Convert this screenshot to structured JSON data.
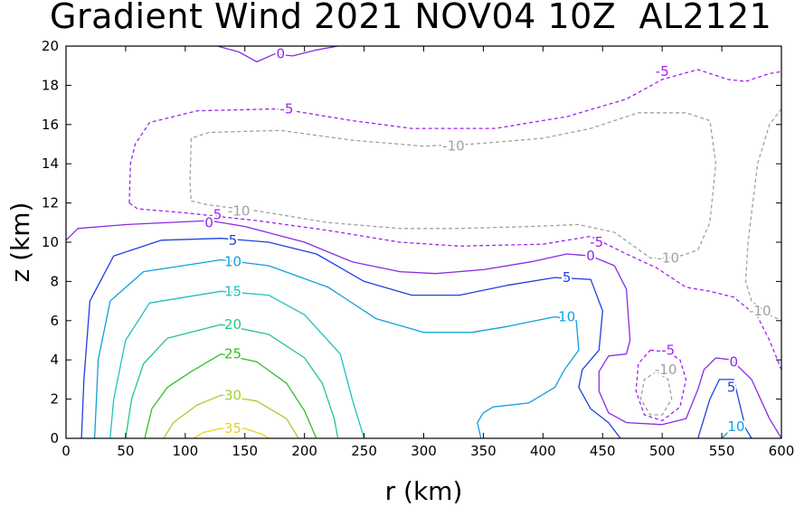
{
  "chart_data": {
    "type": "contour",
    "title": "Gradient Wind 2021 NOV04 10Z  AL2121",
    "xlabel": "r (km)",
    "ylabel": "z (km)",
    "xlim": [
      0,
      600
    ],
    "ylim": [
      0,
      20
    ],
    "xticks": [
      0,
      50,
      100,
      150,
      200,
      250,
      300,
      350,
      400,
      450,
      500,
      550,
      600
    ],
    "yticks": [
      0,
      2,
      4,
      6,
      8,
      10,
      12,
      14,
      16,
      18,
      20
    ],
    "colors": {
      "neg10": "#a0a0a0",
      "neg5": "#a020f0",
      "zero": "#8a2be2",
      "c5": "#2040e0",
      "c10": "#10a0e0",
      "c15": "#20c0c0",
      "c20": "#20c880",
      "c25": "#30c020",
      "c30": "#a0d030",
      "c35": "#e8d020"
    },
    "contours": [
      {
        "level": -10,
        "label": "-10",
        "color": "#a0a0a0",
        "dash": true,
        "points": [
          [
            105,
            12.1
          ],
          [
            120,
            11.9
          ],
          [
            160,
            11.6
          ],
          [
            220,
            11
          ],
          [
            280,
            10.7
          ],
          [
            330,
            10.7
          ],
          [
            390,
            10.8
          ],
          [
            430,
            10.9
          ],
          [
            460,
            10.5
          ],
          [
            490,
            9.2
          ],
          [
            510,
            9.2
          ],
          [
            530,
            9.6
          ],
          [
            540,
            11
          ],
          [
            545,
            14
          ],
          [
            540,
            16.2
          ],
          [
            520,
            16.6
          ],
          [
            480,
            16.6
          ],
          [
            440,
            15.8
          ],
          [
            400,
            15.3
          ],
          [
            340,
            15
          ],
          [
            300,
            14.9
          ],
          [
            240,
            15.2
          ],
          [
            180,
            15.7
          ],
          [
            120,
            15.6
          ],
          [
            105,
            15.3
          ],
          [
            104,
            13
          ],
          [
            105,
            12.1
          ]
        ]
      },
      {
        "level": -10,
        "label": "-10",
        "color": "#a0a0a0",
        "dash": true,
        "points": [
          [
            600,
            16.8
          ],
          [
            590,
            16
          ],
          [
            580,
            14
          ],
          [
            572,
            10
          ],
          [
            570,
            8
          ],
          [
            575,
            7
          ],
          [
            590,
            6.3
          ],
          [
            600,
            6
          ]
        ]
      },
      {
        "level": -10,
        "label": "-10",
        "color": "#a0a0a0",
        "dash": true,
        "points": [
          [
            495,
            3.4
          ],
          [
            485,
            3
          ],
          [
            482,
            2
          ],
          [
            490,
            1.2
          ],
          [
            500,
            1.2
          ],
          [
            508,
            2
          ],
          [
            505,
            3
          ],
          [
            495,
            3.4
          ]
        ]
      },
      {
        "level": -5,
        "label": "-5",
        "color": "#a020f0",
        "dash": true,
        "points": [
          [
            53,
            12
          ],
          [
            60,
            11.7
          ],
          [
            100,
            11.5
          ],
          [
            160,
            11.1
          ],
          [
            220,
            10.6
          ],
          [
            280,
            10
          ],
          [
            330,
            9.8
          ],
          [
            400,
            9.9
          ],
          [
            440,
            10.3
          ],
          [
            470,
            9.4
          ],
          [
            495,
            8.7
          ],
          [
            520,
            7.7
          ],
          [
            540,
            7.5
          ],
          [
            560,
            7.2
          ],
          [
            580,
            6.2
          ],
          [
            590,
            5
          ],
          [
            600,
            3.5
          ]
        ]
      },
      {
        "level": -5,
        "label": "-5",
        "color": "#a020f0",
        "dash": true,
        "points": [
          [
            53,
            12
          ],
          [
            54,
            14
          ],
          [
            58,
            15
          ],
          [
            70,
            16.1
          ],
          [
            110,
            16.7
          ],
          [
            180,
            16.8
          ],
          [
            240,
            16.2
          ],
          [
            290,
            15.8
          ],
          [
            360,
            15.8
          ],
          [
            420,
            16.4
          ],
          [
            470,
            17.3
          ],
          [
            500,
            18.3
          ],
          [
            530,
            18.8
          ],
          [
            555,
            18.3
          ],
          [
            570,
            18.2
          ],
          [
            590,
            18.6
          ],
          [
            600,
            18.7
          ]
        ]
      },
      {
        "level": -5,
        "label": "-5",
        "color": "#a020f0",
        "dash": true,
        "points": [
          [
            490,
            4.5
          ],
          [
            505,
            4.4
          ],
          [
            515,
            4
          ],
          [
            520,
            3
          ],
          [
            515,
            1.6
          ],
          [
            500,
            0.9
          ],
          [
            485,
            1.2
          ],
          [
            478,
            2.4
          ],
          [
            480,
            3.8
          ],
          [
            490,
            4.5
          ]
        ]
      },
      {
        "level": 0,
        "label": "0",
        "color": "#8a2be2",
        "dash": false,
        "points": [
          [
            0,
            10.1
          ],
          [
            10,
            10.7
          ],
          [
            50,
            10.9
          ],
          [
            120,
            11.1
          ],
          [
            150,
            10.8
          ],
          [
            200,
            10
          ],
          [
            240,
            9
          ],
          [
            280,
            8.5
          ],
          [
            310,
            8.4
          ],
          [
            350,
            8.6
          ],
          [
            390,
            9
          ],
          [
            420,
            9.4
          ],
          [
            440,
            9.3
          ],
          [
            460,
            8.8
          ],
          [
            470,
            7.6
          ],
          [
            473,
            5
          ],
          [
            470,
            4.3
          ],
          [
            455,
            4.2
          ],
          [
            447,
            3.4
          ],
          [
            447,
            2.4
          ],
          [
            455,
            1.3
          ],
          [
            470,
            0.8
          ],
          [
            500,
            0.7
          ],
          [
            520,
            1
          ],
          [
            530,
            2.5
          ],
          [
            535,
            3.5
          ],
          [
            545,
            4.1
          ],
          [
            558,
            4
          ],
          [
            575,
            3
          ],
          [
            590,
            1
          ],
          [
            600,
            0
          ]
        ]
      },
      {
        "level": 0,
        "label": "0",
        "color": "#8a2be2",
        "dash": false,
        "points": [
          [
            127,
            20
          ],
          [
            145,
            19.7
          ],
          [
            160,
            19.2
          ],
          [
            175,
            19.6
          ],
          [
            190,
            19.5
          ],
          [
            210,
            19.8
          ],
          [
            228,
            20
          ]
        ]
      },
      {
        "level": 5,
        "label": "5",
        "color": "#2040e0",
        "dash": false,
        "points": [
          [
            13,
            0
          ],
          [
            15,
            3
          ],
          [
            20,
            7
          ],
          [
            40,
            9.3
          ],
          [
            80,
            10.1
          ],
          [
            130,
            10.2
          ],
          [
            170,
            10
          ],
          [
            210,
            9.4
          ],
          [
            250,
            8
          ],
          [
            290,
            7.3
          ],
          [
            330,
            7.3
          ],
          [
            370,
            7.8
          ],
          [
            410,
            8.2
          ],
          [
            440,
            8.1
          ],
          [
            450,
            6.5
          ],
          [
            447,
            4.5
          ],
          [
            433,
            3.5
          ],
          [
            430,
            2.6
          ],
          [
            440,
            1.5
          ],
          [
            455,
            0.8
          ],
          [
            465,
            0
          ]
        ]
      },
      {
        "level": 5,
        "label": "5",
        "color": "#2040e0",
        "dash": false,
        "points": [
          [
            530,
            0
          ],
          [
            535,
            1
          ],
          [
            540,
            2
          ],
          [
            548,
            3
          ],
          [
            560,
            3
          ],
          [
            570,
            0.5
          ],
          [
            575,
            0
          ]
        ]
      },
      {
        "level": 10,
        "label": "10",
        "color": "#10a0e0",
        "dash": false,
        "points": [
          [
            24,
            0
          ],
          [
            27,
            4
          ],
          [
            37,
            7
          ],
          [
            65,
            8.5
          ],
          [
            130,
            9.1
          ],
          [
            170,
            8.8
          ],
          [
            220,
            7.7
          ],
          [
            260,
            6.1
          ],
          [
            300,
            5.4
          ],
          [
            340,
            5.4
          ],
          [
            370,
            5.7
          ],
          [
            410,
            6.2
          ],
          [
            428,
            6
          ],
          [
            430,
            4.5
          ],
          [
            418,
            3.5
          ],
          [
            410,
            2.6
          ],
          [
            388,
            1.8
          ],
          [
            358,
            1.6
          ],
          [
            350,
            1.3
          ],
          [
            345,
            0.8
          ],
          [
            348,
            0
          ]
        ]
      },
      {
        "level": 10,
        "label": "10",
        "color": "#10a0e0",
        "dash": false,
        "points": [
          [
            550,
            0
          ],
          [
            555,
            0.3
          ],
          [
            560,
            0.6
          ]
        ]
      },
      {
        "level": 15,
        "label": "15",
        "color": "#20c0c0",
        "dash": false,
        "points": [
          [
            37,
            0
          ],
          [
            40,
            2
          ],
          [
            50,
            5
          ],
          [
            70,
            6.9
          ],
          [
            130,
            7.5
          ],
          [
            170,
            7.3
          ],
          [
            200,
            6.3
          ],
          [
            230,
            4.3
          ],
          [
            240,
            2
          ],
          [
            250,
            0
          ]
        ]
      },
      {
        "level": 20,
        "label": "20",
        "color": "#20c880",
        "dash": false,
        "points": [
          [
            50,
            0
          ],
          [
            55,
            2
          ],
          [
            65,
            3.8
          ],
          [
            85,
            5.1
          ],
          [
            130,
            5.8
          ],
          [
            170,
            5.3
          ],
          [
            200,
            4.1
          ],
          [
            215,
            2.8
          ],
          [
            225,
            1
          ],
          [
            228,
            0
          ]
        ]
      },
      {
        "level": 25,
        "label": "25",
        "color": "#30c020",
        "dash": false,
        "points": [
          [
            66,
            0
          ],
          [
            72,
            1.5
          ],
          [
            85,
            2.6
          ],
          [
            105,
            3.4
          ],
          [
            130,
            4.3
          ],
          [
            160,
            3.9
          ],
          [
            185,
            2.8
          ],
          [
            200,
            1.4
          ],
          [
            210,
            0
          ]
        ]
      },
      {
        "level": 30,
        "label": "30",
        "color": "#a0d030",
        "dash": false,
        "points": [
          [
            82,
            0
          ],
          [
            90,
            0.8
          ],
          [
            110,
            1.7
          ],
          [
            130,
            2.2
          ],
          [
            160,
            1.9
          ],
          [
            185,
            1
          ],
          [
            195,
            0
          ]
        ]
      },
      {
        "level": 35,
        "label": "35",
        "color": "#e8d020",
        "dash": false,
        "points": [
          [
            107,
            0
          ],
          [
            115,
            0.3
          ],
          [
            130,
            0.5
          ],
          [
            150,
            0.5
          ],
          [
            165,
            0.2
          ],
          [
            170,
            0
          ]
        ]
      }
    ],
    "labels": [
      {
        "text": "0",
        "x": 180,
        "y": 19.6,
        "color": "#8a2be2"
      },
      {
        "text": "-5",
        "x": 500,
        "y": 18.7,
        "color": "#a020f0"
      },
      {
        "text": "-5",
        "x": 185,
        "y": 16.8,
        "color": "#a020f0"
      },
      {
        "text": "-10",
        "x": 325,
        "y": 14.9,
        "color": "#a0a0a0"
      },
      {
        "text": "-10",
        "x": 145,
        "y": 11.6,
        "color": "#a0a0a0"
      },
      {
        "text": "-5",
        "x": 125,
        "y": 11.4,
        "color": "#a020f0"
      },
      {
        "text": "0",
        "x": 120,
        "y": 11,
        "color": "#8a2be2"
      },
      {
        "text": "-5",
        "x": 445,
        "y": 10,
        "color": "#a020f0"
      },
      {
        "text": "0",
        "x": 440,
        "y": 9.3,
        "color": "#8a2be2"
      },
      {
        "text": "-10",
        "x": 505,
        "y": 9.2,
        "color": "#a0a0a0"
      },
      {
        "text": "-10",
        "x": 582,
        "y": 6.5,
        "color": "#a0a0a0"
      },
      {
        "text": "5",
        "x": 140,
        "y": 10.1,
        "color": "#2040e0"
      },
      {
        "text": "10",
        "x": 140,
        "y": 9,
        "color": "#10a0e0"
      },
      {
        "text": "15",
        "x": 140,
        "y": 7.5,
        "color": "#20c0c0"
      },
      {
        "text": "20",
        "x": 140,
        "y": 5.8,
        "color": "#20c880"
      },
      {
        "text": "25",
        "x": 140,
        "y": 4.3,
        "color": "#30c020"
      },
      {
        "text": "30",
        "x": 140,
        "y": 2.2,
        "color": "#a0d030"
      },
      {
        "text": "35",
        "x": 140,
        "y": 0.5,
        "color": "#e8d020"
      },
      {
        "text": "5",
        "x": 420,
        "y": 8.2,
        "color": "#2040e0"
      },
      {
        "text": "10",
        "x": 420,
        "y": 6.2,
        "color": "#10a0e0"
      },
      {
        "text": "-5",
        "x": 505,
        "y": 4.5,
        "color": "#a020f0"
      },
      {
        "text": "-10",
        "x": 503,
        "y": 3.5,
        "color": "#a0a0a0"
      },
      {
        "text": "0",
        "x": 560,
        "y": 3.9,
        "color": "#8a2be2"
      },
      {
        "text": "5",
        "x": 558,
        "y": 2.6,
        "color": "#2040e0"
      },
      {
        "text": "10",
        "x": 562,
        "y": 0.6,
        "color": "#10a0e0"
      }
    ]
  }
}
